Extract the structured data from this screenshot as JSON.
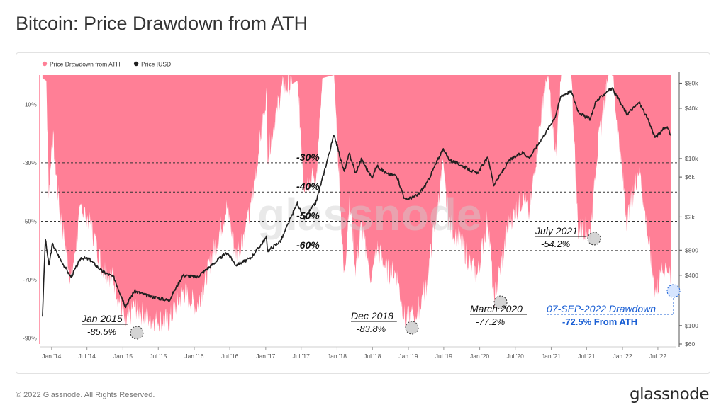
{
  "title": "Bitcoin: Price Drawdown from ATH",
  "footer": {
    "copyright": "© 2022 Glassnode. All Rights Reserved.",
    "brand": "glassnode"
  },
  "colors": {
    "drawdown": "#ff7f96",
    "price": "#1f1f1f",
    "highlight": "#1a5fd4"
  },
  "chart_data": {
    "type": "area",
    "watermark": "glassnode",
    "legend": {
      "placement": "top-left",
      "entries": [
        {
          "label": "Price Drawdown from ATH",
          "color": "#ff7f96"
        },
        {
          "label": "Price [USD]",
          "color": "#1f1f1f"
        }
      ]
    },
    "x_ticks": [
      "Jan '14",
      "Jul '14",
      "Jan '15",
      "Jul '15",
      "Jan '16",
      "Jul '16",
      "Jan '17",
      "Jul '17",
      "Jan '18",
      "Jul '18",
      "Jan '19",
      "Jul '19",
      "Jan '20",
      "Jul '20",
      "Jan '21",
      "Jul '21",
      "Jan '22",
      "Jul '22"
    ],
    "x_range": [
      "2013-11-01",
      "2022-09-30"
    ],
    "y_left": {
      "label": "",
      "ticks": [
        "-10%",
        "-30%",
        "-50%",
        "-70%",
        "-90%"
      ],
      "range": [
        -92,
        0
      ]
    },
    "y_right": {
      "label": "",
      "scale": "log",
      "ticks": [
        "$80k",
        "$40k",
        "$10k",
        "$6k",
        "$2k",
        "$800",
        "$400",
        "$100",
        "$60"
      ],
      "range": [
        60,
        100000
      ]
    },
    "reference_lines": [
      {
        "value": -30,
        "label": "-30%"
      },
      {
        "value": -40,
        "label": "-40%"
      },
      {
        "value": -50,
        "label": "-50%"
      },
      {
        "value": -60,
        "label": "-60%"
      }
    ],
    "annotations": [
      {
        "line1": "Jan 2015",
        "line2": "-85.5%",
        "date": "2015-01-14",
        "value": -85.5
      },
      {
        "line1": "Dec 2018",
        "line2": "-83.8%",
        "date": "2018-12-15",
        "value": -83.8
      },
      {
        "line1": "March 2020",
        "line2": "-77.2%",
        "date": "2020-03-13",
        "value": -77.2
      },
      {
        "line1": "July 2021",
        "line2": "-54.2%",
        "date": "2021-07-20",
        "value": -54.2
      },
      {
        "line1": "07-SEP-2022 Drawdown",
        "line2": "-72.5% From ATH",
        "date": "2022-09-07",
        "value": -72.5,
        "highlight": true
      }
    ],
    "series": [
      {
        "name": "Price Drawdown from ATH",
        "type": "area",
        "unit": "%",
        "points": [
          [
            "2013-11-15",
            -1
          ],
          [
            "2013-12-05",
            -2
          ],
          [
            "2013-12-18",
            -40
          ],
          [
            "2014-01-05",
            -20
          ],
          [
            "2014-02-10",
            -45
          ],
          [
            "2014-04-10",
            -70
          ],
          [
            "2014-06-01",
            -45
          ],
          [
            "2014-07-15",
            -50
          ],
          [
            "2014-09-15",
            -65
          ],
          [
            "2014-11-15",
            -70
          ],
          [
            "2015-01-14",
            -85.5
          ],
          [
            "2015-03-01",
            -79
          ],
          [
            "2015-05-01",
            -83
          ],
          [
            "2015-08-25",
            -84
          ],
          [
            "2015-11-04",
            -74
          ],
          [
            "2016-01-15",
            -79
          ],
          [
            "2016-06-17",
            -45
          ],
          [
            "2016-08-02",
            -62
          ],
          [
            "2016-10-15",
            -47
          ],
          [
            "2017-01-04",
            -6
          ],
          [
            "2017-01-11",
            -27
          ],
          [
            "2017-03-20",
            -5
          ],
          [
            "2017-06-12",
            -2
          ],
          [
            "2017-07-16",
            -37
          ],
          [
            "2017-09-15",
            -35
          ],
          [
            "2017-10-20",
            -1
          ],
          [
            "2017-12-17",
            0
          ],
          [
            "2018-02-06",
            -70
          ],
          [
            "2018-03-05",
            -42
          ],
          [
            "2018-04-06",
            -66
          ],
          [
            "2018-05-05",
            -52
          ],
          [
            "2018-06-28",
            -70
          ],
          [
            "2018-07-24",
            -59
          ],
          [
            "2018-09-15",
            -67
          ],
          [
            "2018-11-01",
            -68
          ],
          [
            "2018-12-15",
            -83.8
          ],
          [
            "2019-02-15",
            -81
          ],
          [
            "2019-04-02",
            -72
          ],
          [
            "2019-06-26",
            -32
          ],
          [
            "2019-08-01",
            -51
          ],
          [
            "2019-09-25",
            -57
          ],
          [
            "2019-12-18",
            -69
          ],
          [
            "2020-02-13",
            -48
          ],
          [
            "2020-03-13",
            -77.2
          ],
          [
            "2020-06-01",
            -50
          ],
          [
            "2020-08-10",
            -42
          ],
          [
            "2020-09-10",
            -48
          ],
          [
            "2020-11-25",
            -5
          ],
          [
            "2020-12-17",
            0
          ],
          [
            "2021-01-22",
            -29
          ],
          [
            "2021-02-21",
            0
          ],
          [
            "2021-04-14",
            0
          ],
          [
            "2021-05-19",
            -53
          ],
          [
            "2021-06-22",
            -52
          ],
          [
            "2021-07-20",
            -54.2
          ],
          [
            "2021-08-15",
            -31
          ],
          [
            "2021-10-20",
            0
          ],
          [
            "2021-11-10",
            0
          ],
          [
            "2022-01-24",
            -50
          ],
          [
            "2022-03-28",
            -31
          ],
          [
            "2022-05-12",
            -56
          ],
          [
            "2022-06-18",
            -74
          ],
          [
            "2022-08-14",
            -64
          ],
          [
            "2022-09-07",
            -72.5
          ]
        ]
      },
      {
        "name": "Price [USD]",
        "type": "line",
        "unit": "USD",
        "scale": "log",
        "points": [
          [
            "2013-11-15",
            130
          ],
          [
            "2013-11-30",
            1100
          ],
          [
            "2013-12-18",
            520
          ],
          [
            "2014-01-05",
            950
          ],
          [
            "2014-02-10",
            650
          ],
          [
            "2014-04-10",
            380
          ],
          [
            "2014-06-01",
            650
          ],
          [
            "2014-07-15",
            620
          ],
          [
            "2014-09-15",
            450
          ],
          [
            "2014-11-15",
            380
          ],
          [
            "2015-01-14",
            170
          ],
          [
            "2015-03-01",
            260
          ],
          [
            "2015-05-01",
            230
          ],
          [
            "2015-08-25",
            200
          ],
          [
            "2015-11-04",
            400
          ],
          [
            "2016-01-15",
            380
          ],
          [
            "2016-06-17",
            750
          ],
          [
            "2016-08-02",
            530
          ],
          [
            "2016-10-15",
            640
          ],
          [
            "2017-01-04",
            1130
          ],
          [
            "2017-01-11",
            780
          ],
          [
            "2017-03-20",
            1050
          ],
          [
            "2017-06-12",
            2950
          ],
          [
            "2017-07-16",
            1900
          ],
          [
            "2017-09-15",
            3000
          ],
          [
            "2017-10-20",
            6000
          ],
          [
            "2017-12-17",
            19500
          ],
          [
            "2018-02-06",
            6900
          ],
          [
            "2018-03-05",
            11500
          ],
          [
            "2018-04-06",
            6600
          ],
          [
            "2018-05-05",
            9800
          ],
          [
            "2018-06-28",
            5900
          ],
          [
            "2018-07-24",
            8200
          ],
          [
            "2018-09-15",
            6500
          ],
          [
            "2018-11-01",
            6300
          ],
          [
            "2018-12-15",
            3200
          ],
          [
            "2019-02-15",
            3600
          ],
          [
            "2019-04-02",
            4900
          ],
          [
            "2019-06-26",
            12900
          ],
          [
            "2019-08-01",
            9600
          ],
          [
            "2019-09-25",
            8400
          ],
          [
            "2019-12-18",
            6600
          ],
          [
            "2020-02-13",
            10300
          ],
          [
            "2020-03-13",
            4800
          ],
          [
            "2020-06-01",
            9500
          ],
          [
            "2020-08-10",
            11900
          ],
          [
            "2020-09-10",
            10200
          ],
          [
            "2020-11-25",
            19000
          ],
          [
            "2020-12-17",
            23000
          ],
          [
            "2021-01-22",
            32000
          ],
          [
            "2021-02-21",
            57000
          ],
          [
            "2021-04-14",
            63500
          ],
          [
            "2021-05-19",
            37000
          ],
          [
            "2021-06-22",
            31700
          ],
          [
            "2021-07-20",
            29800
          ],
          [
            "2021-08-15",
            47000
          ],
          [
            "2021-10-20",
            66000
          ],
          [
            "2021-11-10",
            68000
          ],
          [
            "2022-01-24",
            34000
          ],
          [
            "2022-03-28",
            47000
          ],
          [
            "2022-05-12",
            29000
          ],
          [
            "2022-06-18",
            17800
          ],
          [
            "2022-08-14",
            24500
          ],
          [
            "2022-09-07",
            18800
          ]
        ]
      }
    ]
  }
}
